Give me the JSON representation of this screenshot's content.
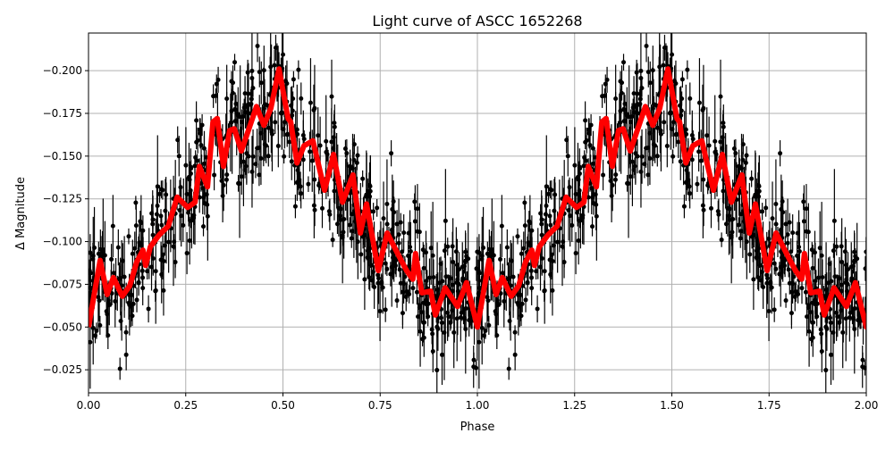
{
  "chart_data": {
    "type": "scatter",
    "title": "Light curve of ASCC 1652268",
    "xlabel": "Phase",
    "ylabel": "Δ Magnitude",
    "xlim": [
      0,
      2
    ],
    "ylim": [
      -0.222,
      -0.0115
    ],
    "y_inverted": true,
    "grid": true,
    "x_ticks": [
      "0.00",
      "0.25",
      "0.50",
      "0.75",
      "1.00",
      "1.25",
      "1.50",
      "1.75",
      "2.00"
    ],
    "x_tick_values": [
      0,
      0.25,
      0.5,
      0.75,
      1,
      1.25,
      1.5,
      1.75,
      2
    ],
    "y_ticks": [
      "−0.200",
      "−0.175",
      "−0.150",
      "−0.125",
      "−0.100",
      "−0.075",
      "−0.050",
      "−0.025"
    ],
    "y_tick_values": [
      -0.2,
      -0.175,
      -0.15,
      -0.125,
      -0.1,
      -0.075,
      -0.05,
      -0.025
    ],
    "colors": {
      "points": "#000000",
      "model": "#ff0000",
      "grid": "#b0b0b0"
    },
    "series": [
      {
        "kind": "model-line",
        "phase": [
          0,
          0.03,
          0.048,
          0.064,
          0.087,
          0.106,
          0.124,
          0.14,
          0.147,
          0.159,
          0.182,
          0.205,
          0.228,
          0.255,
          0.274,
          0.285,
          0.306,
          0.32,
          0.331,
          0.347,
          0.363,
          0.375,
          0.393,
          0.432,
          0.451,
          0.469,
          0.49,
          0.513,
          0.52,
          0.536,
          0.554,
          0.577,
          0.607,
          0.63,
          0.653,
          0.68,
          0.699,
          0.715,
          0.745,
          0.768,
          0.795,
          0.818,
          0.834,
          0.841,
          0.857,
          0.88,
          0.892,
          0.917,
          0.949,
          0.972,
          1.0
        ],
        "magnitude": [
          -0.05,
          -0.089,
          -0.069,
          -0.079,
          -0.068,
          -0.074,
          -0.088,
          -0.095,
          -0.086,
          -0.097,
          -0.104,
          -0.109,
          -0.126,
          -0.12,
          -0.123,
          -0.144,
          -0.132,
          -0.17,
          -0.172,
          -0.144,
          -0.165,
          -0.166,
          -0.153,
          -0.179,
          -0.168,
          -0.178,
          -0.201,
          -0.172,
          -0.17,
          -0.146,
          -0.156,
          -0.159,
          -0.13,
          -0.151,
          -0.123,
          -0.139,
          -0.105,
          -0.122,
          -0.083,
          -0.105,
          -0.093,
          -0.083,
          -0.078,
          -0.093,
          -0.07,
          -0.071,
          -0.057,
          -0.073,
          -0.062,
          -0.076,
          -0.05
        ],
        "repeats_every_phase": 1
      },
      {
        "kind": "observations-with-error-bars"
      }
    ]
  }
}
